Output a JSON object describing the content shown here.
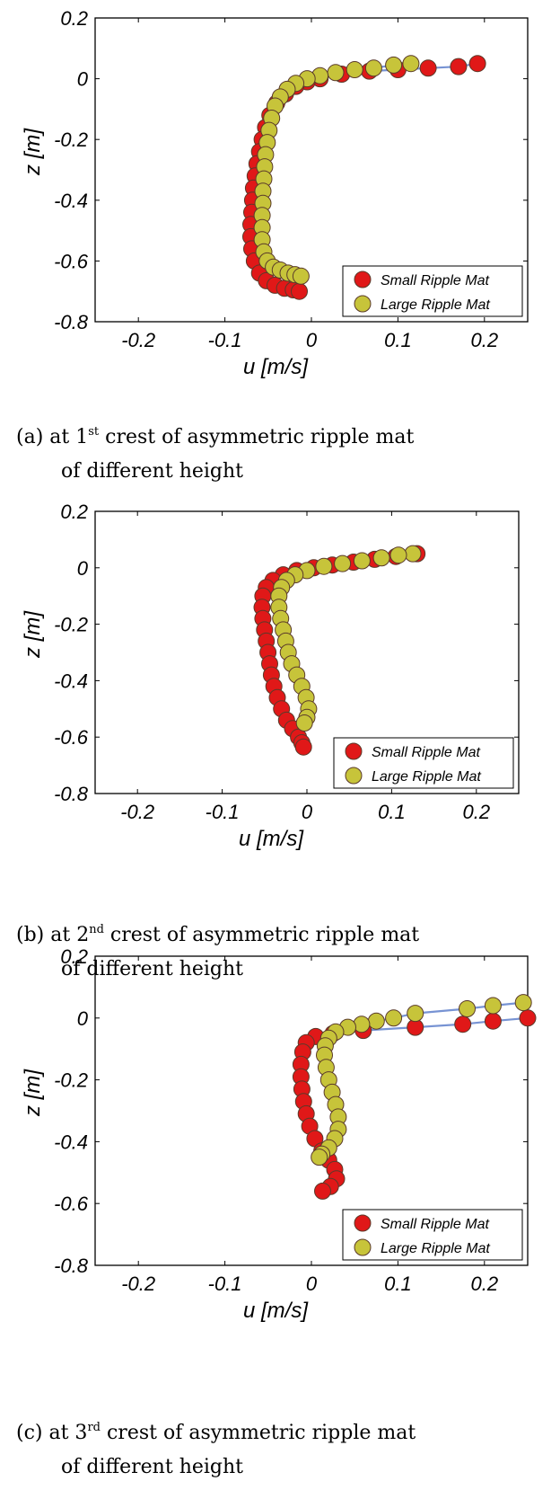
{
  "chart_data": [
    {
      "type": "scatter",
      "caption": {
        "prefix": "(a) at 1",
        "ordinal": "st",
        "suffix": " crest of asymmetric ripple mat",
        "line2": "of different height"
      },
      "xlabel": "u [m/s]",
      "ylabel": "z [m]",
      "xlim": [
        -0.25,
        0.25
      ],
      "ylim": [
        -0.8,
        0.2
      ],
      "xticks": [
        -0.2,
        -0.1,
        0,
        0.1,
        0.2
      ],
      "xtick_labels": [
        "-0.2",
        "-0.1",
        "0",
        "0.1",
        "0.2"
      ],
      "yticks": [
        0.2,
        0,
        -0.2,
        -0.4,
        -0.6,
        -0.8
      ],
      "ytick_labels": [
        "0.2",
        "0",
        "-0.2",
        "-0.4",
        "-0.6",
        "-0.8"
      ],
      "legend": {
        "position": "bottom-right",
        "entries": [
          "Small Ripple Mat",
          "Large Ripple Mat"
        ]
      },
      "series": [
        {
          "name": "Small Ripple Mat",
          "color": "#e01818",
          "points": [
            [
              0.192,
              0.05
            ],
            [
              0.17,
              0.04
            ],
            [
              0.135,
              0.035
            ],
            [
              0.1,
              0.03
            ],
            [
              0.067,
              0.025
            ],
            [
              0.035,
              0.015
            ],
            [
              0.01,
              0.0
            ],
            [
              -0.005,
              -0.01
            ],
            [
              -0.018,
              -0.025
            ],
            [
              -0.03,
              -0.05
            ],
            [
              -0.04,
              -0.08
            ],
            [
              -0.048,
              -0.12
            ],
            [
              -0.053,
              -0.16
            ],
            [
              -0.057,
              -0.2
            ],
            [
              -0.06,
              -0.24
            ],
            [
              -0.063,
              -0.28
            ],
            [
              -0.065,
              -0.32
            ],
            [
              -0.067,
              -0.36
            ],
            [
              -0.068,
              -0.4
            ],
            [
              -0.069,
              -0.44
            ],
            [
              -0.07,
              -0.48
            ],
            [
              -0.07,
              -0.52
            ],
            [
              -0.069,
              -0.56
            ],
            [
              -0.066,
              -0.6
            ],
            [
              -0.06,
              -0.64
            ],
            [
              -0.052,
              -0.665
            ],
            [
              -0.042,
              -0.68
            ],
            [
              -0.031,
              -0.69
            ],
            [
              -0.021,
              -0.695
            ],
            [
              -0.014,
              -0.7
            ]
          ]
        },
        {
          "name": "Large Ripple Mat",
          "color": "#c7c43a",
          "points": [
            [
              0.115,
              0.05
            ],
            [
              0.095,
              0.045
            ],
            [
              0.072,
              0.035
            ],
            [
              0.05,
              0.03
            ],
            [
              0.028,
              0.02
            ],
            [
              0.01,
              0.01
            ],
            [
              -0.005,
              0.0
            ],
            [
              -0.018,
              -0.015
            ],
            [
              -0.028,
              -0.035
            ],
            [
              -0.036,
              -0.06
            ],
            [
              -0.042,
              -0.09
            ],
            [
              -0.046,
              -0.13
            ],
            [
              -0.049,
              -0.17
            ],
            [
              -0.051,
              -0.21
            ],
            [
              -0.053,
              -0.25
            ],
            [
              -0.054,
              -0.29
            ],
            [
              -0.055,
              -0.33
            ],
            [
              -0.056,
              -0.37
            ],
            [
              -0.056,
              -0.41
            ],
            [
              -0.057,
              -0.45
            ],
            [
              -0.057,
              -0.49
            ],
            [
              -0.057,
              -0.53
            ],
            [
              -0.055,
              -0.57
            ],
            [
              -0.051,
              -0.6
            ],
            [
              -0.044,
              -0.62
            ],
            [
              -0.036,
              -0.63
            ],
            [
              -0.027,
              -0.64
            ],
            [
              -0.019,
              -0.645
            ],
            [
              -0.012,
              -0.65
            ]
          ]
        }
      ]
    },
    {
      "type": "scatter",
      "caption": {
        "prefix": "(b) at 2",
        "ordinal": "nd",
        "suffix": " crest of asymmetric ripple mat",
        "line2": "of different height"
      },
      "xlabel": "u [m/s]",
      "ylabel": "z [m]",
      "xlim": [
        -0.25,
        0.25
      ],
      "ylim": [
        -0.8,
        0.2
      ],
      "xticks": [
        -0.2,
        -0.1,
        0,
        0.1,
        0.2
      ],
      "xtick_labels": [
        "-0.2",
        "-0.1",
        "0",
        "0.1",
        "0.2"
      ],
      "yticks": [
        0.2,
        0,
        -0.2,
        -0.4,
        -0.6,
        -0.8
      ],
      "ytick_labels": [
        "0.2",
        "0",
        "-0.2",
        "-0.4",
        "-0.6",
        "-0.8"
      ],
      "legend": {
        "position": "bottom-right",
        "entries": [
          "Small Ripple Mat",
          "Large Ripple Mat"
        ]
      },
      "series": [
        {
          "name": "Small Ripple Mat",
          "color": "#e01818",
          "points": [
            [
              0.13,
              0.05
            ],
            [
              0.105,
              0.04
            ],
            [
              0.08,
              0.03
            ],
            [
              0.055,
              0.02
            ],
            [
              0.03,
              0.01
            ],
            [
              0.008,
              0.0
            ],
            [
              -0.012,
              -0.01
            ],
            [
              -0.028,
              -0.025
            ],
            [
              -0.04,
              -0.045
            ],
            [
              -0.048,
              -0.07
            ],
            [
              -0.052,
              -0.1
            ],
            [
              -0.053,
              -0.14
            ],
            [
              -0.052,
              -0.18
            ],
            [
              -0.05,
              -0.22
            ],
            [
              -0.048,
              -0.26
            ],
            [
              -0.046,
              -0.3
            ],
            [
              -0.044,
              -0.34
            ],
            [
              -0.042,
              -0.38
            ],
            [
              -0.039,
              -0.42
            ],
            [
              -0.035,
              -0.46
            ],
            [
              -0.03,
              -0.5
            ],
            [
              -0.024,
              -0.54
            ],
            [
              -0.017,
              -0.57
            ],
            [
              -0.01,
              -0.6
            ],
            [
              -0.006,
              -0.62
            ],
            [
              -0.004,
              -0.635
            ]
          ]
        },
        {
          "name": "Large Ripple Mat",
          "color": "#c7c43a",
          "points": [
            [
              0.125,
              0.05
            ],
            [
              0.108,
              0.045
            ],
            [
              0.088,
              0.035
            ],
            [
              0.065,
              0.025
            ],
            [
              0.042,
              0.015
            ],
            [
              0.02,
              0.005
            ],
            [
              0.0,
              -0.01
            ],
            [
              -0.014,
              -0.025
            ],
            [
              -0.024,
              -0.045
            ],
            [
              -0.03,
              -0.07
            ],
            [
              -0.033,
              -0.1
            ],
            [
              -0.033,
              -0.14
            ],
            [
              -0.031,
              -0.18
            ],
            [
              -0.028,
              -0.22
            ],
            [
              -0.025,
              -0.26
            ],
            [
              -0.022,
              -0.3
            ],
            [
              -0.018,
              -0.34
            ],
            [
              -0.012,
              -0.38
            ],
            [
              -0.006,
              -0.42
            ],
            [
              -0.001,
              -0.46
            ],
            [
              0.002,
              -0.5
            ],
            [
              0.0,
              -0.53
            ],
            [
              -0.003,
              -0.55
            ]
          ]
        }
      ]
    },
    {
      "type": "scatter",
      "caption": {
        "prefix": "(c) at 3",
        "ordinal": "rd",
        "suffix": " crest of asymmetric ripple mat",
        "line2": "of different height"
      },
      "xlabel": "u [m/s]",
      "ylabel": "z [m]",
      "xlim": [
        -0.25,
        0.25
      ],
      "ylim": [
        -0.8,
        0.2
      ],
      "xticks": [
        -0.2,
        -0.1,
        0,
        0.1,
        0.2
      ],
      "xtick_labels": [
        "-0.2",
        "-0.1",
        "0",
        "0.1",
        "0.2"
      ],
      "yticks": [
        0.2,
        0,
        -0.2,
        -0.4,
        -0.6,
        -0.8
      ],
      "ytick_labels": [
        "0.2",
        "0",
        "-0.2",
        "-0.4",
        "-0.6",
        "-0.8"
      ],
      "legend": {
        "position": "bottom-right",
        "entries": [
          "Small Ripple Mat",
          "Large Ripple Mat"
        ]
      },
      "series": [
        {
          "name": "Small Ripple Mat",
          "color": "#e01818",
          "points": [
            [
              0.25,
              0.0
            ],
            [
              0.21,
              -0.01
            ],
            [
              0.175,
              -0.02
            ],
            [
              0.12,
              -0.03
            ],
            [
              0.06,
              -0.04
            ],
            [
              0.025,
              -0.05
            ],
            [
              0.005,
              -0.06
            ],
            [
              -0.006,
              -0.08
            ],
            [
              -0.01,
              -0.11
            ],
            [
              -0.012,
              -0.15
            ],
            [
              -0.012,
              -0.19
            ],
            [
              -0.011,
              -0.23
            ],
            [
              -0.009,
              -0.27
            ],
            [
              -0.006,
              -0.31
            ],
            [
              -0.002,
              -0.35
            ],
            [
              0.004,
              -0.39
            ],
            [
              0.012,
              -0.43
            ],
            [
              0.02,
              -0.46
            ],
            [
              0.027,
              -0.49
            ],
            [
              0.029,
              -0.52
            ],
            [
              0.022,
              -0.545
            ],
            [
              0.013,
              -0.56
            ]
          ]
        },
        {
          "name": "Large Ripple Mat",
          "color": "#c7c43a",
          "points": [
            [
              0.245,
              0.05
            ],
            [
              0.21,
              0.04
            ],
            [
              0.18,
              0.03
            ],
            [
              0.12,
              0.015
            ],
            [
              0.095,
              0.0
            ],
            [
              0.075,
              -0.01
            ],
            [
              0.058,
              -0.02
            ],
            [
              0.042,
              -0.03
            ],
            [
              0.028,
              -0.045
            ],
            [
              0.02,
              -0.065
            ],
            [
              0.016,
              -0.09
            ],
            [
              0.015,
              -0.12
            ],
            [
              0.017,
              -0.16
            ],
            [
              0.02,
              -0.2
            ],
            [
              0.024,
              -0.24
            ],
            [
              0.028,
              -0.28
            ],
            [
              0.031,
              -0.32
            ],
            [
              0.031,
              -0.36
            ],
            [
              0.027,
              -0.39
            ],
            [
              0.02,
              -0.42
            ],
            [
              0.012,
              -0.44
            ],
            [
              0.009,
              -0.45
            ]
          ]
        }
      ]
    }
  ]
}
